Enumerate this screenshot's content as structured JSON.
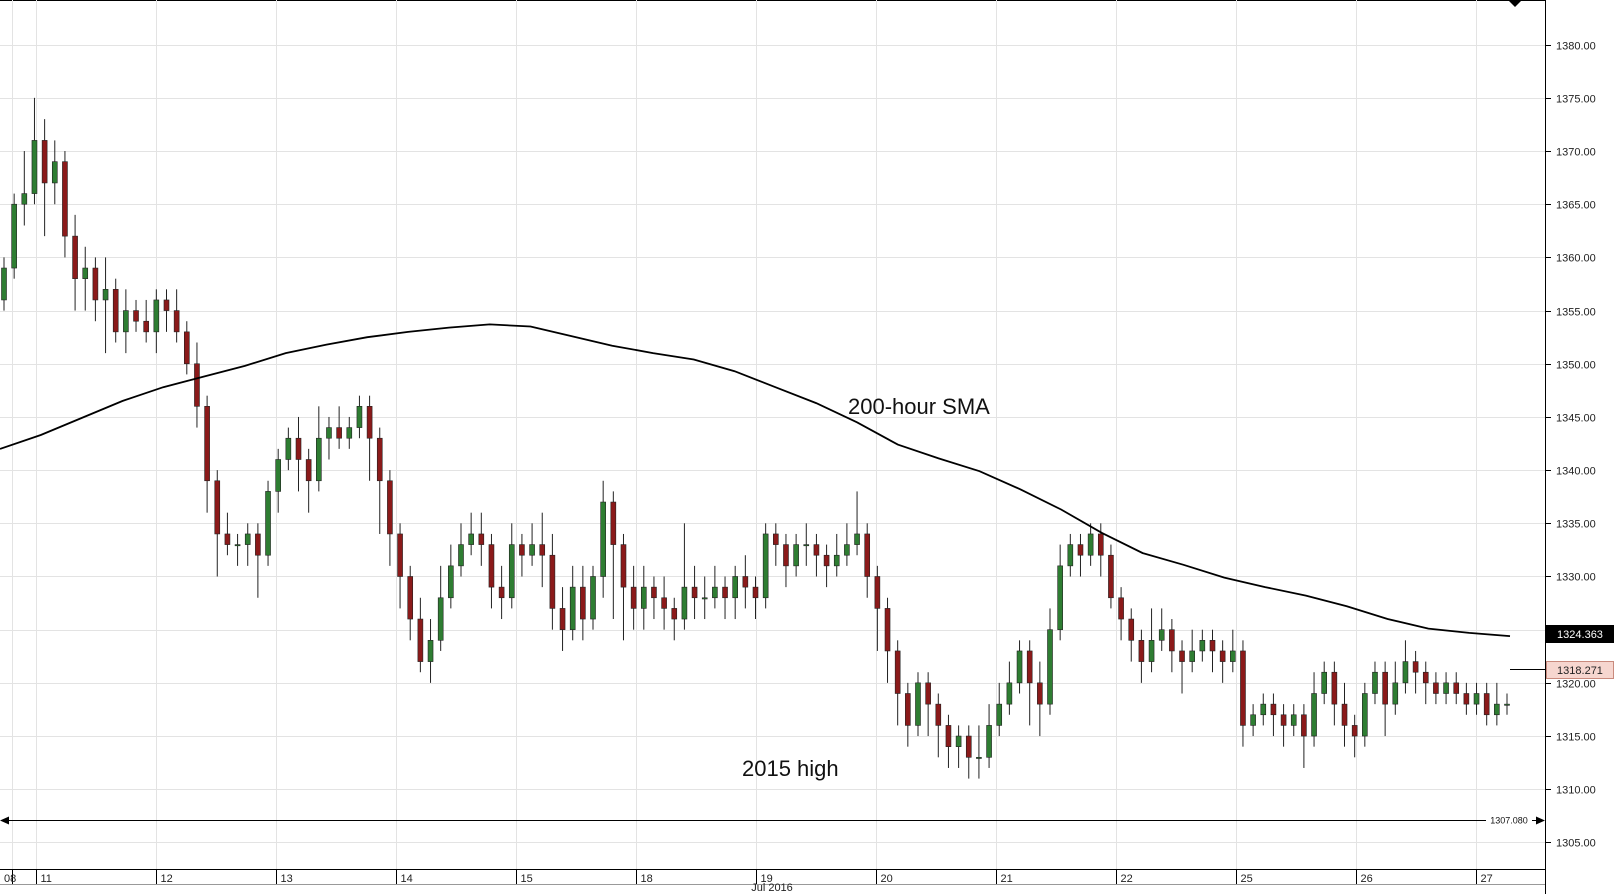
{
  "chart_data": {
    "type": "candlestick",
    "y_ticks": [
      "1380.00",
      "1375.00",
      "1370.00",
      "1365.00",
      "1360.00",
      "1355.00",
      "1350.00",
      "1345.00",
      "1340.00",
      "1335.00",
      "1330.00",
      "1325.00",
      "1320.00",
      "1315.00",
      "1310.00",
      "1305.00"
    ],
    "ylim": [
      1302.5,
      1384.2
    ],
    "x_ticks": [
      "08",
      "11",
      "12",
      "13",
      "14",
      "15",
      "18",
      "19",
      "20",
      "21",
      "22",
      "25",
      "26",
      "27"
    ],
    "month_label": "Jul 2016",
    "annotations": {
      "sma_label": "200-hour SMA",
      "high_label": "2015 high"
    },
    "sma_value": "1324.363",
    "last_price": "1318.271",
    "reference_price": "1307.080",
    "candles": [
      [
        1356,
        1359,
        1355,
        1360
      ],
      [
        1359,
        1365,
        1358,
        1366
      ],
      [
        1365,
        1366,
        1363,
        1370
      ],
      [
        1366,
        1371,
        1365,
        1375
      ],
      [
        1371,
        1367,
        1362,
        1373
      ],
      [
        1367,
        1369,
        1365,
        1371
      ],
      [
        1369,
        1362,
        1360,
        1370
      ],
      [
        1362,
        1358,
        1355,
        1364
      ],
      [
        1358,
        1359,
        1355,
        1361
      ],
      [
        1359,
        1356,
        1354,
        1360
      ],
      [
        1356,
        1357,
        1351,
        1360
      ],
      [
        1357,
        1353,
        1352,
        1358
      ],
      [
        1353,
        1355,
        1351,
        1357
      ],
      [
        1355,
        1354,
        1353,
        1356
      ],
      [
        1354,
        1353,
        1352,
        1356
      ],
      [
        1353,
        1356,
        1351,
        1357
      ],
      [
        1356,
        1355,
        1353,
        1357
      ],
      [
        1355,
        1353,
        1352,
        1357
      ],
      [
        1353,
        1350,
        1349,
        1354
      ],
      [
        1350,
        1346,
        1344,
        1352
      ],
      [
        1346,
        1339,
        1336,
        1347
      ],
      [
        1339,
        1334,
        1330,
        1340
      ],
      [
        1334,
        1333,
        1332,
        1336
      ],
      [
        1333,
        1333,
        1331,
        1334
      ],
      [
        1333,
        1334,
        1331,
        1335
      ],
      [
        1334,
        1332,
        1328,
        1335
      ],
      [
        1332,
        1338,
        1331,
        1339
      ],
      [
        1338,
        1341,
        1336,
        1342
      ],
      [
        1341,
        1343,
        1340,
        1344
      ],
      [
        1343,
        1341,
        1338,
        1345
      ],
      [
        1341,
        1339,
        1336,
        1342
      ],
      [
        1339,
        1343,
        1338,
        1346
      ],
      [
        1343,
        1344,
        1341,
        1345
      ],
      [
        1344,
        1343,
        1342,
        1346
      ],
      [
        1343,
        1344,
        1342,
        1345
      ],
      [
        1344,
        1346,
        1343,
        1347
      ],
      [
        1346,
        1343,
        1339,
        1347
      ],
      [
        1343,
        1339,
        1334,
        1344
      ],
      [
        1339,
        1334,
        1331,
        1340
      ],
      [
        1334,
        1330,
        1327,
        1335
      ],
      [
        1330,
        1326,
        1324,
        1331
      ],
      [
        1326,
        1322,
        1321,
        1328
      ],
      [
        1322,
        1324,
        1320,
        1326
      ],
      [
        1324,
        1328,
        1323,
        1331
      ],
      [
        1328,
        1331,
        1327,
        1333
      ],
      [
        1331,
        1333,
        1330,
        1335
      ],
      [
        1333,
        1334,
        1332,
        1336
      ],
      [
        1334,
        1333,
        1331,
        1336
      ],
      [
        1333,
        1329,
        1327,
        1334
      ],
      [
        1329,
        1328,
        1326,
        1331
      ],
      [
        1328,
        1333,
        1327,
        1335
      ],
      [
        1333,
        1332,
        1330,
        1334
      ],
      [
        1332,
        1333,
        1331,
        1335
      ],
      [
        1333,
        1332,
        1329,
        1336
      ],
      [
        1332,
        1327,
        1325,
        1334
      ],
      [
        1327,
        1325,
        1323,
        1329
      ],
      [
        1325,
        1329,
        1324,
        1331
      ],
      [
        1329,
        1326,
        1324,
        1331
      ],
      [
        1326,
        1330,
        1325,
        1331
      ],
      [
        1330,
        1337,
        1328,
        1339
      ],
      [
        1337,
        1333,
        1326,
        1338
      ],
      [
        1333,
        1329,
        1324,
        1334
      ],
      [
        1329,
        1327,
        1325,
        1331
      ],
      [
        1327,
        1329,
        1325,
        1331
      ],
      [
        1329,
        1328,
        1326,
        1330
      ],
      [
        1328,
        1327,
        1325,
        1330
      ],
      [
        1327,
        1326,
        1324,
        1328
      ],
      [
        1326,
        1329,
        1325,
        1335
      ],
      [
        1329,
        1328,
        1326,
        1331
      ],
      [
        1328,
        1328,
        1326,
        1330
      ],
      [
        1328,
        1329,
        1327,
        1331
      ],
      [
        1329,
        1328,
        1326,
        1330
      ],
      [
        1328,
        1330,
        1326,
        1331
      ],
      [
        1330,
        1329,
        1327,
        1332
      ],
      [
        1329,
        1328,
        1326,
        1330
      ],
      [
        1328,
        1334,
        1327,
        1335
      ],
      [
        1334,
        1333,
        1331,
        1335
      ],
      [
        1333,
        1331,
        1329,
        1334
      ],
      [
        1331,
        1333,
        1330,
        1334
      ],
      [
        1333,
        1333,
        1331,
        1335
      ],
      [
        1333,
        1332,
        1330,
        1334
      ],
      [
        1332,
        1331,
        1329,
        1333
      ],
      [
        1331,
        1332,
        1330,
        1334
      ],
      [
        1332,
        1333,
        1331,
        1335
      ],
      [
        1333,
        1334,
        1332,
        1338
      ],
      [
        1334,
        1330,
        1328,
        1335
      ],
      [
        1330,
        1327,
        1323,
        1331
      ],
      [
        1327,
        1323,
        1320,
        1328
      ],
      [
        1323,
        1319,
        1316,
        1324
      ],
      [
        1319,
        1316,
        1314,
        1320
      ],
      [
        1316,
        1320,
        1315,
        1321
      ],
      [
        1320,
        1318,
        1315,
        1321
      ],
      [
        1318,
        1316,
        1313,
        1319
      ],
      [
        1316,
        1314,
        1312,
        1317
      ],
      [
        1314,
        1315,
        1312,
        1316
      ],
      [
        1315,
        1313,
        1311,
        1316
      ],
      [
        1313,
        1313,
        1311,
        1316
      ],
      [
        1313,
        1316,
        1312,
        1318
      ],
      [
        1316,
        1318,
        1315,
        1320
      ],
      [
        1318,
        1320,
        1317,
        1322
      ],
      [
        1320,
        1323,
        1319,
        1324
      ],
      [
        1323,
        1320,
        1316,
        1324
      ],
      [
        1320,
        1318,
        1315,
        1322
      ],
      [
        1318,
        1325,
        1317,
        1327
      ],
      [
        1325,
        1331,
        1324,
        1333
      ],
      [
        1331,
        1333,
        1330,
        1334
      ],
      [
        1333,
        1332,
        1330,
        1334
      ],
      [
        1332,
        1334,
        1331,
        1335
      ],
      [
        1334,
        1332,
        1330,
        1335
      ],
      [
        1332,
        1328,
        1327,
        1333
      ],
      [
        1328,
        1326,
        1324,
        1329
      ],
      [
        1326,
        1324,
        1322,
        1327
      ],
      [
        1324,
        1322,
        1320,
        1325
      ],
      [
        1322,
        1324,
        1321,
        1327
      ],
      [
        1324,
        1325,
        1323,
        1327
      ],
      [
        1325,
        1323,
        1321,
        1326
      ],
      [
        1323,
        1322,
        1319,
        1324
      ],
      [
        1322,
        1323,
        1321,
        1325
      ],
      [
        1323,
        1324,
        1322,
        1325
      ],
      [
        1324,
        1323,
        1321,
        1325
      ],
      [
        1323,
        1322,
        1320,
        1324
      ],
      [
        1322,
        1323,
        1321,
        1325
      ],
      [
        1323,
        1316,
        1314,
        1324
      ],
      [
        1316,
        1317,
        1315,
        1318
      ],
      [
        1317,
        1318,
        1316,
        1319
      ],
      [
        1318,
        1317,
        1315,
        1319
      ],
      [
        1317,
        1316,
        1314,
        1318
      ],
      [
        1316,
        1317,
        1315,
        1318
      ],
      [
        1317,
        1315,
        1312,
        1318
      ],
      [
        1315,
        1319,
        1314,
        1321
      ],
      [
        1319,
        1321,
        1318,
        1322
      ],
      [
        1321,
        1318,
        1316,
        1322
      ],
      [
        1318,
        1316,
        1314,
        1320
      ],
      [
        1316,
        1315,
        1313,
        1317
      ],
      [
        1315,
        1319,
        1314,
        1320
      ],
      [
        1319,
        1321,
        1318,
        1322
      ],
      [
        1321,
        1318,
        1315,
        1322
      ],
      [
        1318,
        1320,
        1317,
        1322
      ],
      [
        1320,
        1322,
        1319,
        1324
      ],
      [
        1322,
        1321,
        1319,
        1323
      ],
      [
        1321,
        1320,
        1318,
        1322
      ],
      [
        1320,
        1319,
        1318,
        1321
      ],
      [
        1319,
        1320,
        1318,
        1321
      ],
      [
        1320,
        1319,
        1318,
        1321
      ],
      [
        1319,
        1318,
        1317,
        1320
      ],
      [
        1318,
        1319,
        1317,
        1320
      ],
      [
        1319,
        1317,
        1316,
        1320
      ],
      [
        1317,
        1318,
        1316,
        1320
      ],
      [
        1318,
        1318,
        1317,
        1319
      ]
    ],
    "sma": [
      [
        0,
        1342
      ],
      [
        6,
        1343.3
      ],
      [
        12,
        1344.9
      ],
      [
        18,
        1346.5
      ],
      [
        24,
        1347.8
      ],
      [
        30,
        1348.8
      ],
      [
        36,
        1349.8
      ],
      [
        42,
        1351
      ],
      [
        48,
        1351.8
      ],
      [
        54,
        1352.5
      ],
      [
        60,
        1353
      ],
      [
        66,
        1353.4
      ],
      [
        72,
        1353.7
      ],
      [
        78,
        1353.5
      ],
      [
        84,
        1352.6
      ],
      [
        90,
        1351.7
      ],
      [
        96,
        1351
      ],
      [
        102,
        1350.4
      ],
      [
        108,
        1349.3
      ],
      [
        114,
        1347.8
      ],
      [
        120,
        1346.3
      ],
      [
        126,
        1344.5
      ],
      [
        132,
        1342.4
      ],
      [
        138,
        1341.1
      ],
      [
        144,
        1339.9
      ],
      [
        150,
        1338.2
      ],
      [
        156,
        1336.3
      ],
      [
        162,
        1334.1
      ],
      [
        168,
        1332.2
      ],
      [
        174,
        1331.1
      ],
      [
        180,
        1329.9
      ],
      [
        186,
        1329
      ],
      [
        192,
        1328.2
      ],
      [
        198,
        1327.2
      ],
      [
        204,
        1326
      ],
      [
        210,
        1325.1
      ],
      [
        216,
        1324.7
      ],
      [
        222,
        1324.4
      ]
    ],
    "ref_level": 1307.08
  }
}
